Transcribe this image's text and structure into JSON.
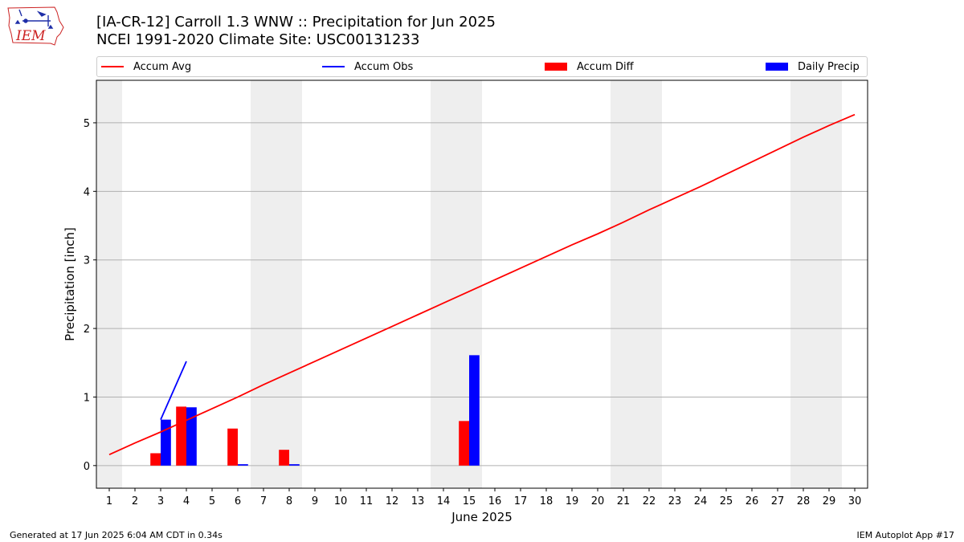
{
  "header": {
    "title_line1": "[IA-CR-12] Carroll 1.3 WNW :: Precipitation for Jun 2025",
    "title_line2": "NCEI 1991-2020 Climate Site: USC00131233",
    "logo_text": "IEM"
  },
  "legend": {
    "items": [
      {
        "label": "Accum Avg",
        "kind": "line",
        "color": "#ff0000"
      },
      {
        "label": "Accum Obs",
        "kind": "line",
        "color": "#0000ff"
      },
      {
        "label": "Accum Diff",
        "kind": "box",
        "color": "#ff0000"
      },
      {
        "label": "Daily Precip",
        "kind": "box",
        "color": "#0000ff"
      }
    ]
  },
  "footer": {
    "generated": "Generated at 17 Jun 2025 6:04 AM CDT in 0.34s",
    "app": "IEM Autoplot App #17"
  },
  "chart_data": {
    "type": "bar",
    "xlabel": "June 2025",
    "ylabel": "Precipitation [inch]",
    "xlim": [
      0.5,
      30.5
    ],
    "ylim": [
      -0.33,
      5.62
    ],
    "x_ticks": [
      1,
      2,
      3,
      4,
      5,
      6,
      7,
      8,
      9,
      10,
      11,
      12,
      13,
      14,
      15,
      16,
      17,
      18,
      19,
      20,
      21,
      22,
      23,
      24,
      25,
      26,
      27,
      28,
      29,
      30
    ],
    "y_ticks": [
      0,
      1,
      2,
      3,
      4,
      5
    ],
    "grid": "y",
    "weekend_shading": [
      [
        0.5,
        1.5
      ],
      [
        6.5,
        8.5
      ],
      [
        13.5,
        15.5
      ],
      [
        20.5,
        22.5
      ],
      [
        27.5,
        29.5
      ]
    ],
    "series": [
      {
        "name": "Accum Avg",
        "kind": "line",
        "color": "#ff0000",
        "x": [
          1,
          2,
          3,
          4,
          5,
          6,
          7,
          8,
          9,
          10,
          11,
          12,
          13,
          14,
          15,
          16,
          17,
          18,
          19,
          20,
          21,
          22,
          23,
          24,
          25,
          26,
          27,
          28,
          29,
          30
        ],
        "values": [
          0.16,
          0.33,
          0.49,
          0.66,
          0.83,
          1.0,
          1.18,
          1.35,
          1.52,
          1.69,
          1.86,
          2.03,
          2.2,
          2.37,
          2.54,
          2.71,
          2.88,
          3.05,
          3.22,
          3.38,
          3.55,
          3.73,
          3.9,
          4.07,
          4.25,
          4.43,
          4.61,
          4.79,
          4.96,
          5.12
        ]
      },
      {
        "name": "Accum Obs",
        "kind": "line",
        "color": "#0000ff",
        "x": [
          3,
          4
        ],
        "values": [
          0.67,
          1.52
        ]
      },
      {
        "name": "Accum Diff",
        "kind": "bar",
        "color": "#ff0000",
        "x": [
          3,
          4,
          6,
          8,
          15
        ],
        "values": [
          0.18,
          0.86,
          0.54,
          0.23,
          0.65
        ]
      },
      {
        "name": "Daily Precip",
        "kind": "bar",
        "color": "#0000ff",
        "x": [
          3,
          4,
          6,
          8,
          15
        ],
        "values": [
          0.67,
          0.85,
          0.02,
          0.02,
          1.61
        ]
      }
    ]
  }
}
